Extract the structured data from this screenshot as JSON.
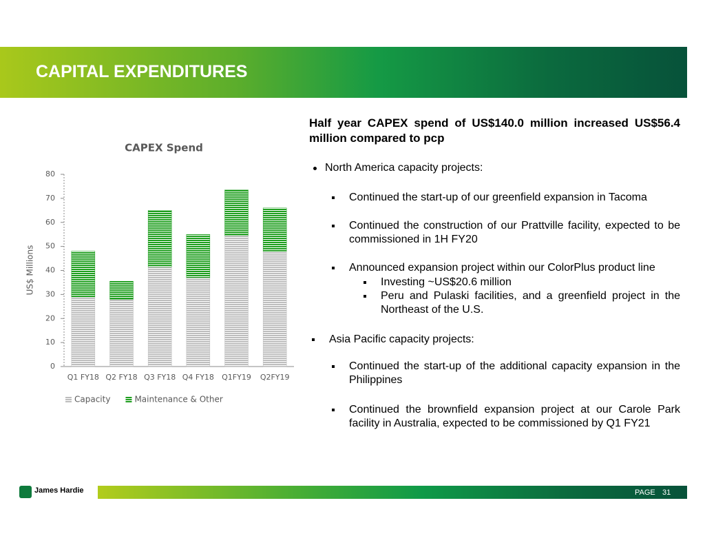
{
  "header": {
    "title": "CAPITAL EXPENDITURES"
  },
  "chart_data": {
    "type": "stacked-bar",
    "title": "CAPEX Spend",
    "y_label": "US$ Millions",
    "categories": [
      "Q1 FY18",
      "Q2 FY18",
      "Q3 FY18",
      "Q4 FY18",
      "Q1FY19",
      "Q2FY19"
    ],
    "series": [
      {
        "name": "Capacity",
        "color": "#bdbdbd",
        "values": [
          29,
          28,
          41.5,
          37,
          54.5,
          48
        ]
      },
      {
        "name": "Maintenance & Other",
        "color": "#1e9e1e",
        "values": [
          19,
          7.5,
          23.5,
          18,
          19,
          18
        ]
      }
    ],
    "ylim": [
      0,
      80
    ],
    "yticks": [
      0,
      10,
      20,
      30,
      40,
      50,
      60,
      70,
      80
    ],
    "grid": false,
    "legend": "bottom"
  },
  "body": {
    "heading": "Half year CAPEX spend of US$140.0 million increased US$56.4 million compared to pcp",
    "items": [
      "North America capacity projects:",
      "Continued the start-up of our greenfield expansion in Tacoma",
      "Continued the construction of our Prattville facility, expected to be commissioned in 1H FY20",
      "Announced expansion project within our ColorPlus product line",
      "Investing ~US$20.6 million",
      "Peru and Pulaski facilities, and a greenfield project in the Northeast of the U.S.",
      "Asia Pacific capacity projects:",
      "Continued the start-up of the additional capacity expansion in the Philippines",
      "Continued the brownfield expansion project at our Carole Park facility in Australia, expected to be commissioned by Q1 FY21"
    ]
  },
  "footer": {
    "brand": "James Hardie",
    "page_label": "PAGE",
    "page_number": "31"
  }
}
